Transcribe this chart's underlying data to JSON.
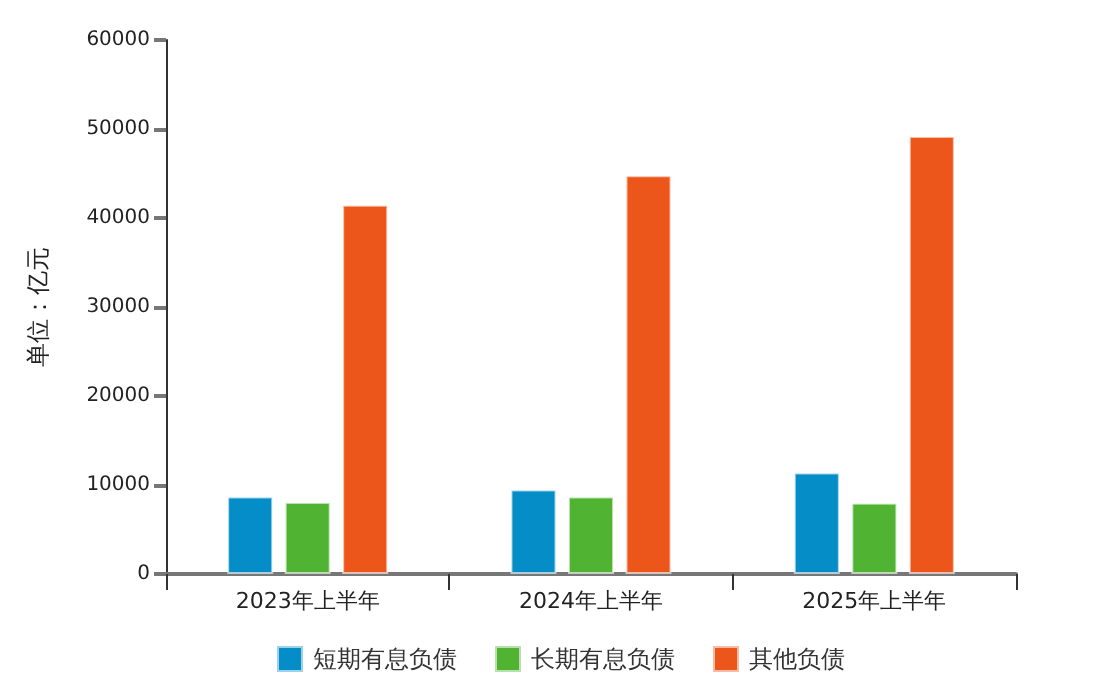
{
  "chart_data": {
    "type": "bar",
    "ylabel": "单位：亿元",
    "categories": [
      "2023年上半年",
      "2024年上半年",
      "2025年上半年"
    ],
    "series": [
      {
        "name": "短期有息负债",
        "color": "#058dc7",
        "values": [
          8700,
          9500,
          11400
        ]
      },
      {
        "name": "长期有息负债",
        "color": "#50b432",
        "values": [
          8100,
          8700,
          8000
        ]
      },
      {
        "name": "其他负债",
        "color": "#ed561b",
        "values": [
          41500,
          44800,
          49200
        ]
      }
    ],
    "ylim": [
      0,
      60000
    ],
    "yticks": [
      0,
      10000,
      20000,
      30000,
      40000,
      50000,
      60000
    ],
    "grid": false,
    "legend": "bottom"
  }
}
